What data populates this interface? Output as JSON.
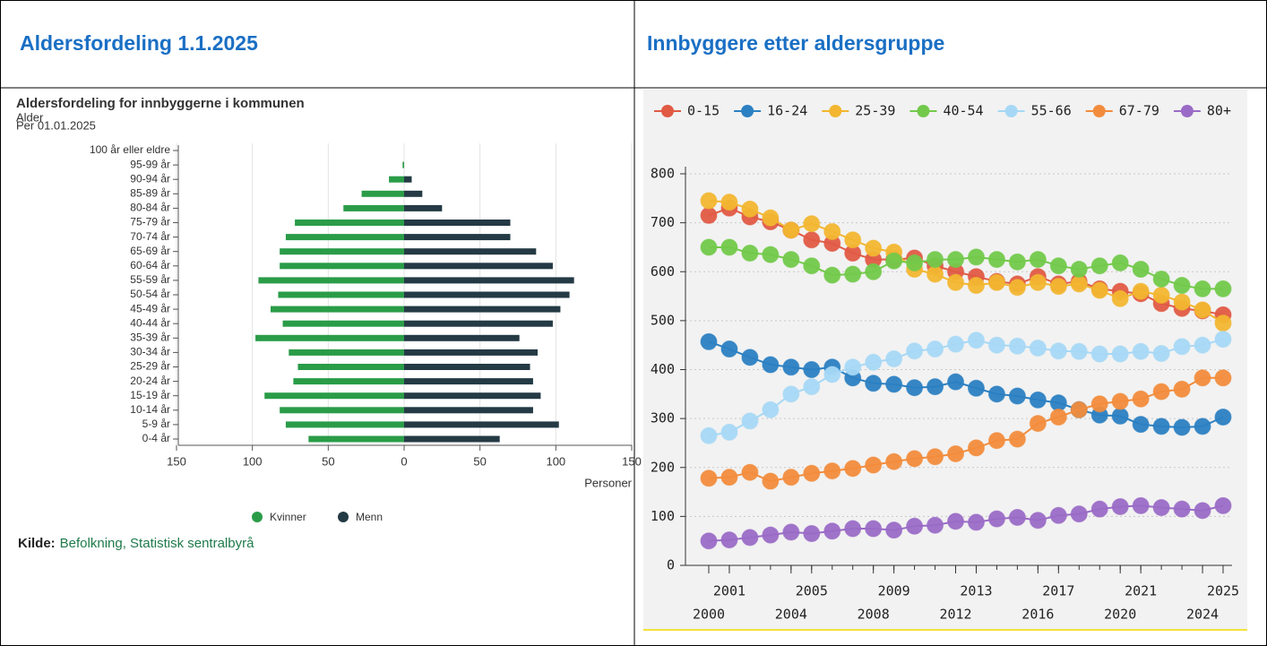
{
  "panels": [
    {
      "heading": "Aldersfordeling 1.1.2025"
    },
    {
      "heading": "Innbyggere etter aldersgruppe"
    }
  ],
  "source": {
    "label": "Kilde:",
    "text": "Befolkning, Statistisk sentralbyrå"
  },
  "chart_data": [
    {
      "type": "bar",
      "orientation": "horizontal",
      "title": "Aldersfordeling for innbyggerne i kommunen",
      "subtitle": "Per 01.01.2025",
      "y_label": "Alder",
      "x_label": "Personer",
      "categories": [
        "100 år eller eldre",
        "95-99 år",
        "90-94 år",
        "85-89 år",
        "80-84 år",
        "75-79 år",
        "70-74 år",
        "65-69 år",
        "60-64 år",
        "55-59 år",
        "50-54 år",
        "45-49 år",
        "40-44 år",
        "35-39 år",
        "30-34 år",
        "25-29 år",
        "20-24 år",
        "15-19 år",
        "10-14 år",
        "5-9 år",
        "0-4 år"
      ],
      "series": [
        {
          "name": "Kvinner",
          "color": "#2a9c48",
          "values": [
            0,
            -1,
            -10,
            -28,
            -40,
            -72,
            -78,
            -82,
            -82,
            -96,
            -83,
            -88,
            -80,
            -98,
            -76,
            -70,
            -73,
            -92,
            -82,
            -78,
            -63
          ]
        },
        {
          "name": "Menn",
          "color": "#243a45",
          "values": [
            0,
            0,
            5,
            12,
            25,
            70,
            70,
            87,
            98,
            112,
            109,
            103,
            98,
            76,
            88,
            83,
            85,
            90,
            85,
            102,
            63
          ]
        }
      ],
      "xlim": [
        -150,
        150
      ],
      "xticks": [
        {
          "value": -150,
          "label": "150"
        },
        {
          "value": -100,
          "label": "100"
        },
        {
          "value": -50,
          "label": "50"
        },
        0,
        50,
        100,
        150
      ],
      "grid": true,
      "legend": "bottom"
    },
    {
      "type": "line",
      "x": [
        2000,
        2001,
        2002,
        2003,
        2004,
        2005,
        2006,
        2007,
        2008,
        2009,
        2010,
        2011,
        2012,
        2013,
        2014,
        2015,
        2016,
        2017,
        2018,
        2019,
        2020,
        2021,
        2022,
        2023,
        2024,
        2025
      ],
      "series": [
        {
          "name": "0-15",
          "color": "#e05a44",
          "values": [
            715,
            730,
            712,
            702,
            685,
            665,
            658,
            638,
            625,
            625,
            628,
            612,
            600,
            590,
            580,
            575,
            590,
            575,
            580,
            565,
            560,
            555,
            535,
            525,
            520,
            512
          ]
        },
        {
          "name": "16-24",
          "color": "#2b80c2",
          "values": [
            457,
            442,
            425,
            410,
            405,
            400,
            405,
            383,
            372,
            370,
            363,
            365,
            375,
            362,
            350,
            346,
            338,
            332,
            318,
            307,
            305,
            288,
            284,
            282,
            284,
            303
          ]
        },
        {
          "name": "25-39",
          "color": "#f2b630",
          "values": [
            745,
            742,
            728,
            710,
            685,
            698,
            682,
            665,
            648,
            640,
            605,
            595,
            578,
            572,
            578,
            568,
            578,
            570,
            575,
            562,
            545,
            560,
            552,
            538,
            522,
            495
          ]
        },
        {
          "name": "40-54",
          "color": "#72c94a",
          "values": [
            650,
            650,
            638,
            635,
            625,
            612,
            593,
            595,
            600,
            622,
            618,
            625,
            625,
            630,
            625,
            620,
            625,
            612,
            605,
            612,
            618,
            605,
            585,
            572,
            565,
            565
          ]
        },
        {
          "name": "55-66",
          "color": "#a6d8f5",
          "values": [
            265,
            272,
            295,
            318,
            350,
            365,
            390,
            405,
            415,
            422,
            438,
            442,
            452,
            460,
            450,
            448,
            444,
            438,
            437,
            432,
            432,
            437,
            433,
            447,
            450,
            462
          ]
        },
        {
          "name": "67-79",
          "color": "#f28c3c",
          "values": [
            178,
            180,
            190,
            172,
            180,
            188,
            193,
            198,
            205,
            212,
            218,
            222,
            228,
            240,
            255,
            258,
            290,
            303,
            318,
            330,
            335,
            340,
            355,
            360,
            383,
            383
          ]
        },
        {
          "name": "80+",
          "color": "#9a6bc6",
          "values": [
            50,
            52,
            57,
            62,
            68,
            65,
            70,
            75,
            75,
            72,
            80,
            82,
            90,
            88,
            95,
            98,
            92,
            102,
            105,
            115,
            120,
            122,
            118,
            115,
            112,
            122
          ]
        }
      ],
      "xlim": [
        2000,
        2025
      ],
      "xticks": [
        2000,
        2001,
        2004,
        2005,
        2008,
        2009,
        2012,
        2013,
        2016,
        2017,
        2020,
        2021,
        2024,
        2025
      ],
      "ylim": [
        0,
        800
      ],
      "yticks": [
        0,
        100,
        200,
        300,
        400,
        500,
        600,
        700,
        800
      ],
      "grid": true,
      "legend": "top"
    }
  ]
}
